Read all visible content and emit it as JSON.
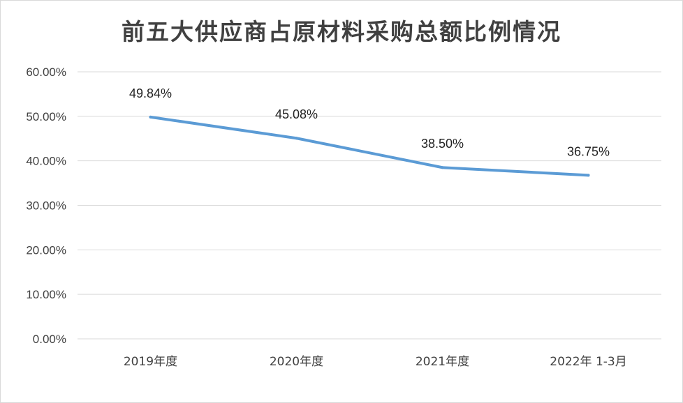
{
  "chart_data": {
    "type": "line",
    "title": "前五大供应商占原材料采购总额比例情况",
    "categories": [
      "2019年度",
      "2020年度",
      "2021年度",
      "2022年 1-3月"
    ],
    "series": [
      {
        "values": [
          49.84,
          45.08,
          38.5,
          36.75
        ],
        "labels": [
          "49.84%",
          "45.08%",
          "38.50%",
          "36.75%"
        ],
        "color": "#5b9bd5"
      }
    ],
    "y_ticks": [
      "0.00%",
      "10.00%",
      "20.00%",
      "30.00%",
      "40.00%",
      "50.00%",
      "60.00%"
    ],
    "ylim": [
      0,
      60
    ],
    "y_unit": "%",
    "grid": true,
    "legend": "none"
  }
}
